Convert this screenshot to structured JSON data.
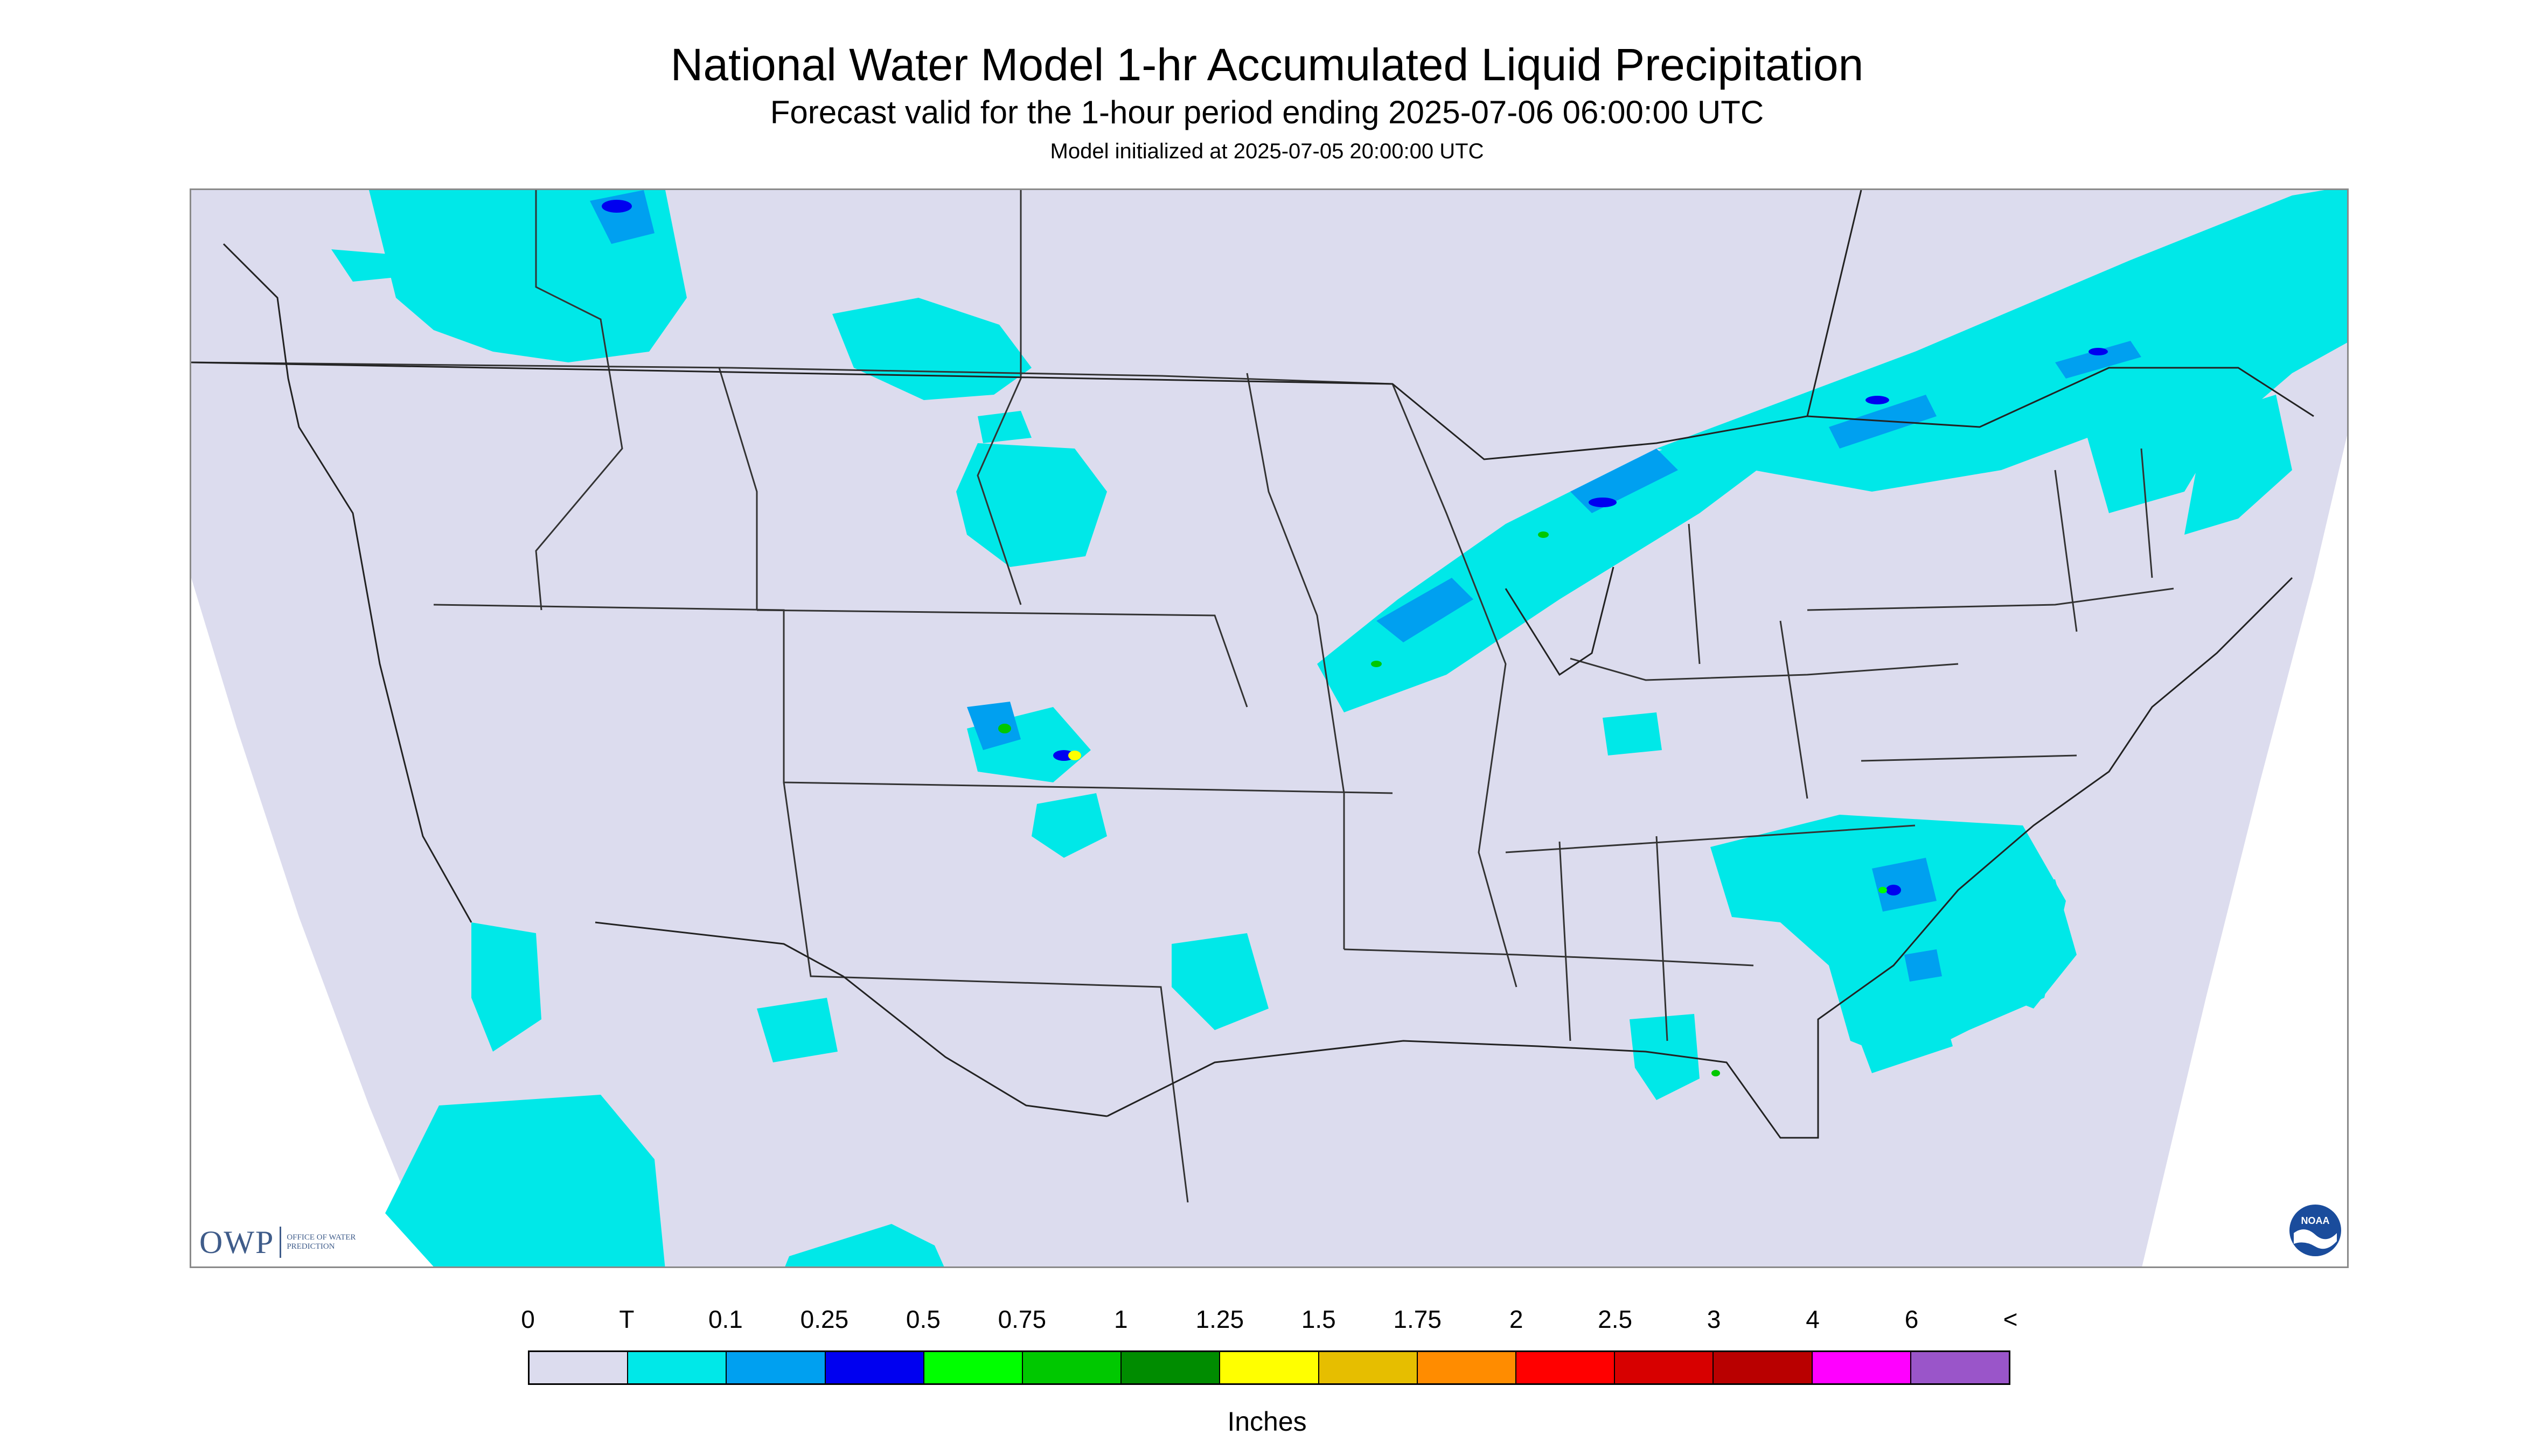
{
  "header": {
    "title": "National Water Model 1-hr Accumulated Liquid Precipitation",
    "subtitle": "Forecast valid for the 1-hour period ending 2025-07-06 06:00:00 UTC",
    "init_line": "Model initialized at 2025-07-05 20:00:00 UTC"
  },
  "map": {
    "background_color": "#dcdcee",
    "outside_domain_color": "#ffffff",
    "border_color": "#333333"
  },
  "logos": {
    "owp": {
      "abbr": "OWP",
      "full": "OFFICE OF WATER PREDICTION",
      "color": "#3f5c8a"
    },
    "noaa": {
      "text": "NOAA",
      "icon": "noaa-seal-icon"
    }
  },
  "legend": {
    "labels": [
      "0",
      "T",
      "0.1",
      "0.25",
      "0.5",
      "0.75",
      "1",
      "1.25",
      "1.5",
      "1.75",
      "2",
      "2.5",
      "3",
      "4",
      "6",
      "<"
    ],
    "colors": [
      "#dcdcee",
      "#00e8e8",
      "#00a0f0",
      "#0000f0",
      "#00ff00",
      "#00c800",
      "#008c00",
      "#ffff00",
      "#e6be00",
      "#ff8c00",
      "#ff0000",
      "#d70000",
      "#b90000",
      "#ff00ff",
      "#9a55c9"
    ],
    "unit": "Inches"
  }
}
